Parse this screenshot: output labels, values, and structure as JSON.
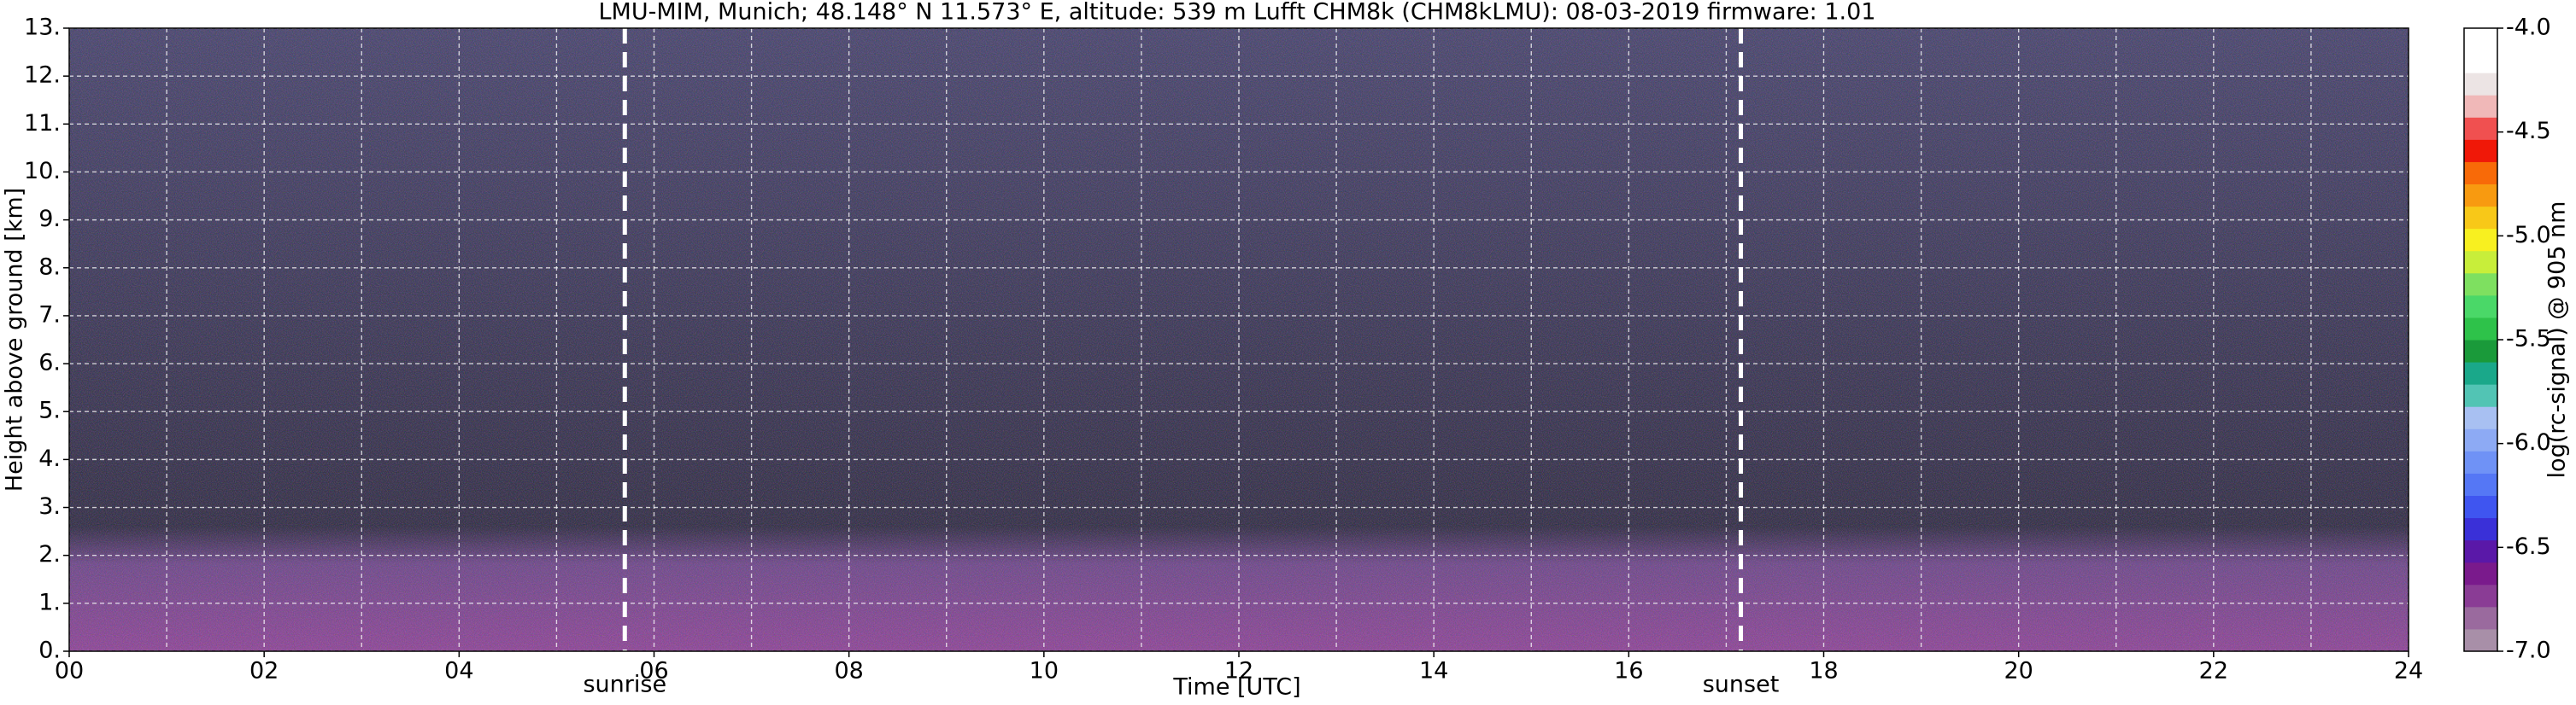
{
  "chart_data": {
    "type": "heatmap",
    "title": "LMU-MIM, Munich; 48.148° N 11.573° E, altitude: 539 m    Lufft CHM8k (CHM8kLMU): 08-03-2019    firmware: 1.01",
    "x_label": "Time [UTC]",
    "y_label": "Height above ground [km]",
    "xlim": [
      0,
      24
    ],
    "xticks": [
      {
        "value": 0,
        "label": "00"
      },
      {
        "value": 2,
        "label": "02"
      },
      {
        "value": 4,
        "label": "04"
      },
      {
        "value": 6,
        "label": "06"
      },
      {
        "value": 8,
        "label": "08"
      },
      {
        "value": 10,
        "label": "10"
      },
      {
        "value": 12,
        "label": "12"
      },
      {
        "value": 14,
        "label": "14"
      },
      {
        "value": 16,
        "label": "16"
      },
      {
        "value": 18,
        "label": "18"
      },
      {
        "value": 20,
        "label": "20"
      },
      {
        "value": 22,
        "label": "22"
      },
      {
        "value": 24,
        "label": "24"
      }
    ],
    "x_minor_grid": [
      1,
      3,
      5,
      7,
      9,
      11,
      13,
      15,
      17,
      19,
      21,
      23
    ],
    "ylim": [
      0,
      13
    ],
    "yticks": [
      {
        "value": 0,
        "label": "0."
      },
      {
        "value": 1,
        "label": "1."
      },
      {
        "value": 2,
        "label": "2."
      },
      {
        "value": 3,
        "label": "3."
      },
      {
        "value": 4,
        "label": "4."
      },
      {
        "value": 5,
        "label": "5."
      },
      {
        "value": 6,
        "label": "6."
      },
      {
        "value": 7,
        "label": "7."
      },
      {
        "value": 8,
        "label": "8."
      },
      {
        "value": 9,
        "label": "9."
      },
      {
        "value": 10,
        "label": "10."
      },
      {
        "value": 11,
        "label": "11."
      },
      {
        "value": 12,
        "label": "12."
      },
      {
        "value": 13,
        "label": "13."
      }
    ],
    "grid": true,
    "annotations": [
      {
        "label": "sunrise",
        "x": 5.7
      },
      {
        "label": "sunset",
        "x": 17.15
      }
    ],
    "colorbar": {
      "label": "log(rc-signal) @ 905 nm",
      "lim": [
        -7,
        -4
      ],
      "ticks": [
        {
          "value": -7,
          "label": "-7.0"
        },
        {
          "value": -6.5,
          "label": "-6.5"
        },
        {
          "value": -6,
          "label": "-6.0"
        },
        {
          "value": -5.5,
          "label": "-5.5"
        },
        {
          "value": -5,
          "label": "-5.0"
        },
        {
          "value": -4.5,
          "label": "-4.5"
        },
        {
          "value": -4,
          "label": "-4.0"
        }
      ],
      "colors": [
        "#a88fa8",
        "#9a6a9e",
        "#8a3c95",
        "#7a1a8c",
        "#5a18a8",
        "#3a30d8",
        "#3f55f0",
        "#5577f5",
        "#6f92f6",
        "#8daaf4",
        "#a8c0f2",
        "#52c4b4",
        "#1aa88a",
        "#1a9a3a",
        "#2ec24a",
        "#4ad868",
        "#7ee060",
        "#c8ee3a",
        "#f8f020",
        "#f8c818",
        "#f89a10",
        "#f86a08",
        "#f01808",
        "#f05050",
        "#f0b8b8",
        "#ece4e4",
        "#ffffff",
        "#ffffff"
      ]
    }
  }
}
